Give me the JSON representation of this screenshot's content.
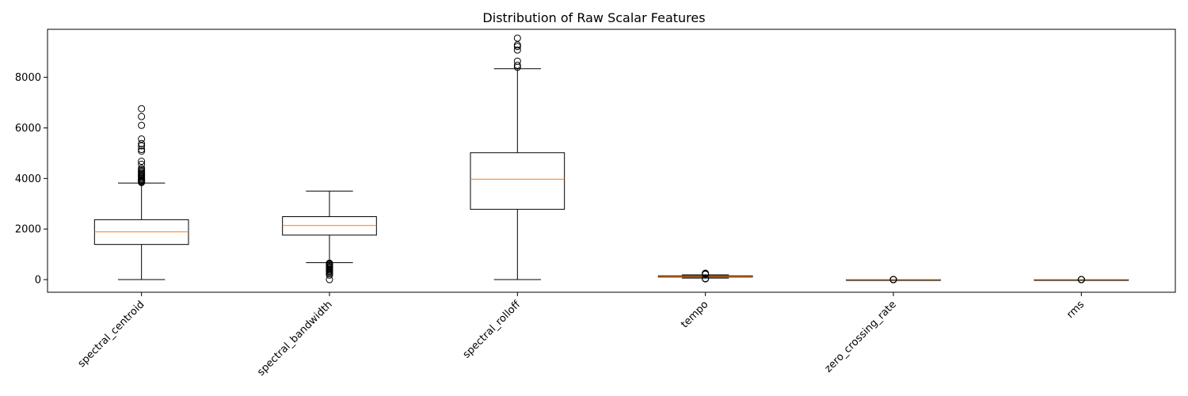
{
  "chart_data": {
    "type": "boxplot",
    "title": "Distribution of Raw Scalar Features",
    "xlabel": "",
    "ylabel": "",
    "ylim": [
      -500,
      9900
    ],
    "yticks": [
      0,
      2000,
      4000,
      6000,
      8000
    ],
    "ytick_labels": [
      "0",
      "2000",
      "4000",
      "6000",
      "8000"
    ],
    "x_tick_rotation": 45,
    "grid": false,
    "colors": {
      "box": "#000000",
      "median": "#ff7f0e",
      "flier": "#000000"
    },
    "categories": [
      "spectral_centroid",
      "spectral_bandwidth",
      "spectral_rolloff",
      "tempo",
      "zero_crossing_rate",
      "rms"
    ],
    "boxes": [
      {
        "name": "spectral_centroid",
        "whislo": 0,
        "q1": 1390,
        "med": 1890,
        "q3": 2370,
        "whishi": 3820,
        "fliers": [
          3840,
          3870,
          3900,
          3930,
          3960,
          4000,
          4040,
          4080,
          4120,
          4160,
          4200,
          4240,
          4290,
          4340,
          4400,
          4560,
          4680,
          5080,
          5150,
          5290,
          5380,
          5560,
          6100,
          6450,
          6760
        ]
      },
      {
        "name": "spectral_bandwidth",
        "whislo": 670,
        "q1": 1760,
        "med": 2140,
        "q3": 2490,
        "whishi": 3500,
        "fliers": [
          0,
          180,
          240,
          290,
          330,
          370,
          410,
          450,
          490,
          520,
          560,
          600,
          630,
          650
        ]
      },
      {
        "name": "spectral_rolloff",
        "whislo": 0,
        "q1": 2780,
        "med": 3970,
        "q3": 5020,
        "whishi": 8340,
        "fliers": [
          8400,
          8480,
          8640,
          9080,
          9220,
          9280,
          9550
        ]
      },
      {
        "name": "tempo",
        "whislo": 60,
        "q1": 100,
        "med": 120,
        "q3": 150,
        "whishi": 190,
        "fliers": [
          30,
          45,
          210,
          230,
          250
        ]
      },
      {
        "name": "zero_crossing_rate",
        "whislo": 0.02,
        "q1": 0.07,
        "med": 0.1,
        "q3": 0.13,
        "whishi": 0.22,
        "fliers": [
          0.25,
          0.3,
          0.35,
          0.4,
          0.45,
          0.5
        ]
      },
      {
        "name": "rms",
        "whislo": 0.01,
        "q1": 0.08,
        "med": 0.12,
        "q3": 0.17,
        "whishi": 0.3,
        "fliers": [
          0.32,
          0.36,
          0.4,
          0.45
        ]
      }
    ]
  }
}
